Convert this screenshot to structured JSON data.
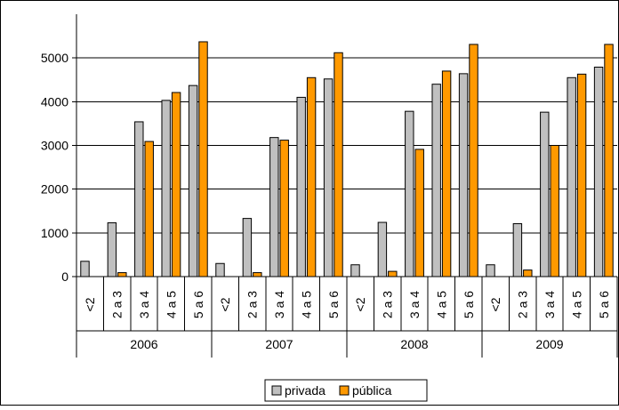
{
  "chart_data": {
    "type": "bar",
    "groups": [
      "2006",
      "2007",
      "2008",
      "2009"
    ],
    "categories": [
      "<2",
      "2 a 3",
      "3 a 4",
      "4 a 5",
      "5 a 6"
    ],
    "series": [
      {
        "name": "privada",
        "color": "#c0c0c0",
        "values": [
          [
            350,
            1230,
            3540,
            4030,
            4370
          ],
          [
            300,
            1330,
            3180,
            4100,
            4520
          ],
          [
            270,
            1240,
            3780,
            4400,
            4640
          ],
          [
            270,
            1210,
            3760,
            4550,
            4790
          ]
        ]
      },
      {
        "name": "pública",
        "color": "#ff9900",
        "values": [
          [
            0,
            90,
            3090,
            4210,
            5370
          ],
          [
            0,
            90,
            3120,
            4550,
            5120
          ],
          [
            0,
            120,
            2910,
            4700,
            5310
          ],
          [
            0,
            150,
            3000,
            4630,
            5310
          ]
        ]
      }
    ],
    "ylim": [
      0,
      6000
    ],
    "yticks": [
      0,
      1000,
      2000,
      3000,
      4000,
      5000
    ],
    "grid": true,
    "legend_position": "bottom-center",
    "title": "",
    "xlabel": "",
    "ylabel": ""
  }
}
